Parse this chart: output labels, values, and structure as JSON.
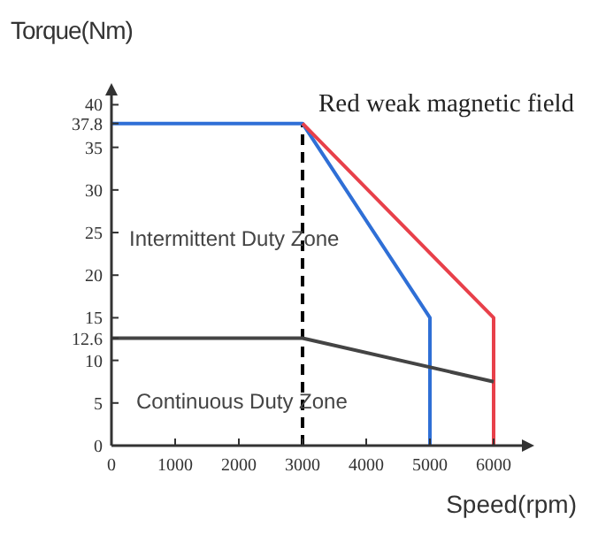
{
  "chart_data": {
    "type": "line",
    "xlabel": "Speed(rpm)",
    "ylabel": "Torque(Nm)",
    "xlim": [
      0,
      6500
    ],
    "ylim": [
      0,
      41.5
    ],
    "xticks": [
      0,
      1000,
      2000,
      3000,
      4000,
      5000,
      6000
    ],
    "yticks": [
      0,
      5,
      10,
      12.6,
      15,
      20,
      25,
      30,
      35,
      37.8,
      40
    ],
    "series": [
      {
        "color": "#2f6fd6",
        "x": [
          0,
          3000,
          5000,
          5000
        ],
        "values": [
          37.8,
          37.8,
          15,
          0
        ]
      },
      {
        "color": "#e8404a",
        "x": [
          3000,
          6000,
          6000
        ],
        "values": [
          37.8,
          15,
          0
        ]
      },
      {
        "color": "#444444",
        "x": [
          0,
          3000,
          6000
        ],
        "values": [
          12.6,
          12.6,
          7.5
        ]
      }
    ],
    "ref_lines": [
      {
        "axis": "x",
        "value": 3000,
        "color": "#000000",
        "line_style": "dashed"
      }
    ],
    "annotations": [
      "Red weak magnetic field",
      "Intermittent Duty Zone",
      "Continuous Duty Zone"
    ],
    "grid": false,
    "marker": "none",
    "line_style": "solid"
  }
}
